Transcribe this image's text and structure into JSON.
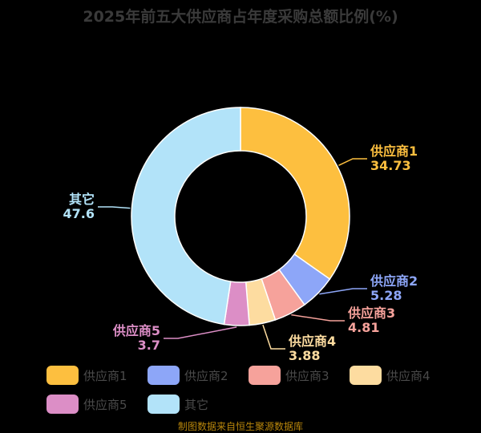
{
  "chart_data": {
    "type": "pie",
    "title": "2025年前五大供应商占年度采购总额比例(%)",
    "slices": [
      {
        "label": "供应商1",
        "value": 34.73,
        "value_text": "34.73",
        "color": "#FDBF3F"
      },
      {
        "label": "供应商2",
        "value": 5.28,
        "value_text": "5.28",
        "color": "#8DA6F8"
      },
      {
        "label": "供应商3",
        "value": 4.81,
        "value_text": "4.81",
        "color": "#F6A29B"
      },
      {
        "label": "供应商4",
        "value": 3.88,
        "value_text": "3.88",
        "color": "#FDDCA0"
      },
      {
        "label": "供应商5",
        "value": 3.7,
        "value_text": "3.7",
        "color": "#DC8EC6"
      },
      {
        "label": "其它",
        "value": 47.6,
        "value_text": "47.6",
        "color": "#B2E3F9"
      }
    ],
    "legend_position": "bottom",
    "donut": true
  },
  "footer": "制图数据来自恒生聚源数据库"
}
